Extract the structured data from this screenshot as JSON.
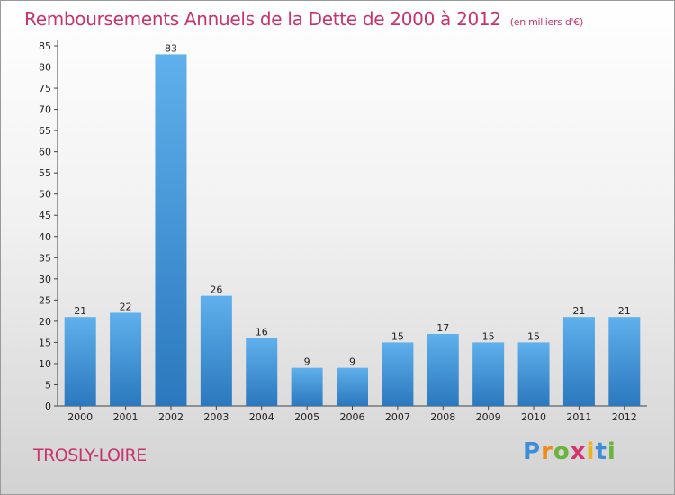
{
  "title": "Remboursements Annuels de la Dette de 2000 à 2012",
  "subtitle": "(en milliers d'€)",
  "commune": "TROSLY-LOIRE",
  "logo": {
    "letters": [
      "P",
      "r",
      "o",
      "x",
      "i",
      "t",
      "i"
    ],
    "colors": [
      "#3d8ed6",
      "#f08a1c",
      "#6ab33e",
      "#d6336c",
      "#f0b21c",
      "#3d8ed6",
      "#6ab33e"
    ]
  },
  "chart_data": {
    "type": "bar",
    "categories": [
      "2000",
      "2001",
      "2002",
      "2003",
      "2004",
      "2005",
      "2006",
      "2007",
      "2008",
      "2009",
      "2010",
      "2011",
      "2012"
    ],
    "values": [
      21,
      22,
      83,
      26,
      16,
      9,
      9,
      15,
      17,
      15,
      15,
      21,
      21
    ],
    "yticks": [
      0,
      5,
      10,
      15,
      20,
      25,
      30,
      35,
      40,
      45,
      50,
      55,
      60,
      65,
      70,
      75,
      80,
      85
    ],
    "ylim": [
      0,
      85
    ],
    "grid": false,
    "bar_color": "#3a8fd6"
  }
}
